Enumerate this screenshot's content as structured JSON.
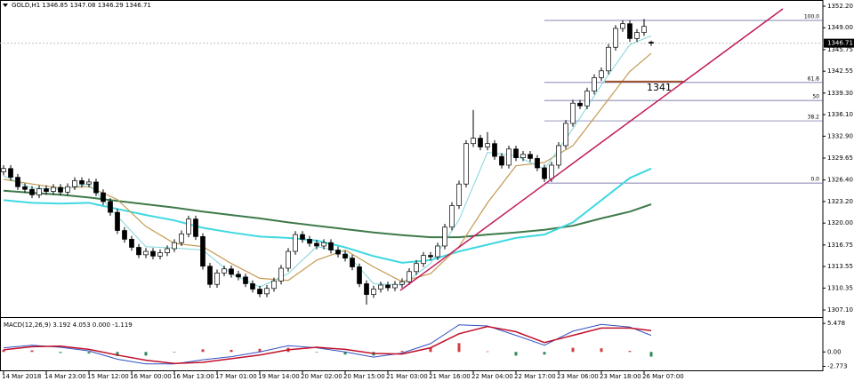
{
  "chart_data": {
    "type": "candlestick",
    "header": "GOLD,H1 1346.85 1347.08 1346.29 1346.71",
    "last_price": 1346.71,
    "categories": [
      "14 Mar 2018",
      null,
      null,
      null,
      null,
      null,
      "14 Mar 23:00",
      null,
      null,
      null,
      null,
      null,
      "15 Mar 12:00",
      null,
      null,
      null,
      null,
      null,
      "16 Mar 00:00",
      null,
      null,
      null,
      null,
      null,
      "16 Mar 13:00",
      null,
      null,
      null,
      null,
      null,
      "17 Mar 01:00",
      null,
      null,
      null,
      null,
      null,
      "19 Mar 14:00",
      null,
      null,
      null,
      null,
      null,
      "20 Mar 02:00",
      null,
      null,
      null,
      null,
      null,
      "20 Mar 15:00",
      null,
      null,
      null,
      null,
      null,
      "21 Mar 03:00",
      null,
      null,
      null,
      null,
      null,
      "21 Mar 16:00",
      null,
      null,
      null,
      null,
      null,
      "22 Mar 04:00",
      null,
      null,
      null,
      null,
      null,
      "22 Mar 17:00",
      null,
      null,
      null,
      null,
      null,
      "23 Mar 06:00",
      null,
      null,
      null,
      null,
      null,
      "23 Mar 18:00",
      null,
      null,
      null,
      null,
      null,
      "26 Mar 07:00",
      null
    ],
    "ohlc": [
      [
        1327.6,
        1328.6,
        1327.1,
        1328.1
      ],
      [
        1328.1,
        1328.6,
        1326.3,
        1326.8
      ],
      [
        1326.8,
        1327.3,
        1324.9,
        1325.4
      ],
      [
        1325.4,
        1325.9,
        1324.5,
        1325.0
      ],
      [
        1325.0,
        1325.5,
        1323.7,
        1324.2
      ],
      [
        1324.2,
        1325.6,
        1323.7,
        1325.1
      ],
      [
        1325.1,
        1325.6,
        1324.2,
        1324.7
      ],
      [
        1324.7,
        1325.8,
        1324.2,
        1325.3
      ],
      [
        1325.3,
        1325.8,
        1324.1,
        1324.6
      ],
      [
        1324.6,
        1325.9,
        1324.1,
        1325.4
      ],
      [
        1325.4,
        1326.8,
        1324.9,
        1326.3
      ],
      [
        1326.3,
        1326.8,
        1325.3,
        1325.8
      ],
      [
        1325.8,
        1326.6,
        1325.3,
        1326.1
      ],
      [
        1326.1,
        1326.6,
        1324.0,
        1324.5
      ],
      [
        1324.5,
        1325.0,
        1322.7,
        1323.2
      ],
      [
        1323.2,
        1323.7,
        1321.1,
        1321.6
      ],
      [
        1321.6,
        1322.1,
        1318.4,
        1318.9
      ],
      [
        1318.9,
        1319.4,
        1317.1,
        1317.6
      ],
      [
        1317.6,
        1318.1,
        1315.9,
        1316.4
      ],
      [
        1316.4,
        1316.9,
        1314.8,
        1315.3
      ],
      [
        1315.3,
        1316.3,
        1314.8,
        1315.8
      ],
      [
        1315.8,
        1316.3,
        1314.6,
        1315.1
      ],
      [
        1315.1,
        1316.1,
        1314.6,
        1315.6
      ],
      [
        1315.6,
        1316.7,
        1315.1,
        1316.2
      ],
      [
        1316.2,
        1317.6,
        1315.7,
        1317.1
      ],
      [
        1317.1,
        1318.9,
        1316.6,
        1318.4
      ],
      [
        1318.4,
        1321.1,
        1317.9,
        1320.6
      ],
      [
        1320.6,
        1321.1,
        1317.5,
        1318.0
      ],
      [
        1318.0,
        1318.5,
        1313.1,
        1313.6
      ],
      [
        1313.6,
        1314.1,
        1310.4,
        1310.9
      ],
      [
        1310.9,
        1313.1,
        1310.4,
        1312.6
      ],
      [
        1312.6,
        1313.7,
        1312.1,
        1313.2
      ],
      [
        1313.2,
        1313.7,
        1311.9,
        1312.4
      ],
      [
        1312.4,
        1312.9,
        1311.5,
        1312.0
      ],
      [
        1312.0,
        1312.5,
        1310.5,
        1311.0
      ],
      [
        1311.0,
        1311.5,
        1309.7,
        1310.2
      ],
      [
        1310.2,
        1310.7,
        1309.0,
        1309.5
      ],
      [
        1309.5,
        1310.8,
        1309.0,
        1310.3
      ],
      [
        1310.3,
        1311.9,
        1309.8,
        1311.4
      ],
      [
        1311.4,
        1313.8,
        1310.9,
        1313.3
      ],
      [
        1313.3,
        1316.3,
        1312.8,
        1315.8
      ],
      [
        1315.8,
        1318.8,
        1315.3,
        1318.3
      ],
      [
        1318.3,
        1318.8,
        1317.1,
        1317.6
      ],
      [
        1317.6,
        1318.1,
        1316.5,
        1317.0
      ],
      [
        1317.0,
        1317.5,
        1316.1,
        1316.6
      ],
      [
        1316.6,
        1317.6,
        1316.1,
        1317.1
      ],
      [
        1317.1,
        1317.6,
        1315.5,
        1316.0
      ],
      [
        1316.0,
        1316.5,
        1314.9,
        1315.4
      ],
      [
        1315.4,
        1315.9,
        1314.3,
        1314.8
      ],
      [
        1314.8,
        1315.3,
        1313.0,
        1313.5
      ],
      [
        1313.5,
        1314.0,
        1310.5,
        1311.0
      ],
      [
        1311.0,
        1311.5,
        1307.9,
        1309.4
      ],
      [
        1309.4,
        1310.7,
        1308.9,
        1310.2
      ],
      [
        1310.2,
        1311.3,
        1309.7,
        1310.8
      ],
      [
        1310.8,
        1311.3,
        1309.9,
        1310.4
      ],
      [
        1310.4,
        1311.4,
        1309.9,
        1310.9
      ],
      [
        1310.9,
        1311.8,
        1310.4,
        1311.3
      ],
      [
        1311.3,
        1313.3,
        1310.8,
        1312.8
      ],
      [
        1312.8,
        1314.5,
        1312.3,
        1314.0
      ],
      [
        1314.0,
        1315.7,
        1313.5,
        1315.2
      ],
      [
        1315.2,
        1315.7,
        1314.5,
        1315.0
      ],
      [
        1315.0,
        1317.1,
        1314.5,
        1316.6
      ],
      [
        1316.6,
        1319.9,
        1316.1,
        1319.4
      ],
      [
        1319.4,
        1323.1,
        1318.9,
        1322.6
      ],
      [
        1322.6,
        1326.3,
        1322.1,
        1325.8
      ],
      [
        1325.8,
        1332.3,
        1325.3,
        1331.8
      ],
      [
        1331.8,
        1336.8,
        1331.3,
        1332.6
      ],
      [
        1332.6,
        1333.1,
        1330.8,
        1331.3
      ],
      [
        1331.3,
        1333.5,
        1330.8,
        1331.8
      ],
      [
        1331.8,
        1332.3,
        1329.4,
        1329.9
      ],
      [
        1329.9,
        1330.4,
        1328.1,
        1328.6
      ],
      [
        1328.6,
        1331.5,
        1328.1,
        1331.0
      ],
      [
        1331.0,
        1331.5,
        1329.2,
        1329.7
      ],
      [
        1329.7,
        1330.7,
        1329.2,
        1330.2
      ],
      [
        1330.2,
        1330.7,
        1329.1,
        1329.6
      ],
      [
        1329.6,
        1330.1,
        1327.7,
        1328.2
      ],
      [
        1328.2,
        1328.7,
        1326.1,
        1326.6
      ],
      [
        1326.6,
        1329.1,
        1326.1,
        1328.6
      ],
      [
        1328.6,
        1332.0,
        1328.1,
        1331.5
      ],
      [
        1331.5,
        1335.3,
        1331.0,
        1334.8
      ],
      [
        1334.8,
        1338.3,
        1334.3,
        1337.8
      ],
      [
        1337.8,
        1338.3,
        1336.9,
        1337.4
      ],
      [
        1337.4,
        1340.1,
        1336.9,
        1339.6
      ],
      [
        1339.6,
        1342.1,
        1339.1,
        1341.6
      ],
      [
        1341.6,
        1343.1,
        1341.1,
        1342.6
      ],
      [
        1342.6,
        1346.6,
        1342.1,
        1346.1
      ],
      [
        1346.1,
        1349.4,
        1345.6,
        1348.9
      ],
      [
        1348.9,
        1350.1,
        1348.4,
        1349.6
      ],
      [
        1349.6,
        1350.1,
        1346.9,
        1347.4
      ],
      [
        1347.4,
        1348.8,
        1346.9,
        1348.3
      ],
      [
        1348.3,
        1350.3,
        1347.8,
        1349.2
      ],
      [
        1346.85,
        1347.08,
        1346.29,
        1346.71
      ]
    ],
    "up_color": "#ffffff",
    "down_color": "#000000",
    "wick_color": "#000000",
    "ylim": [
      1306.05,
      1353.12
    ],
    "yticks": [
      {
        "value": 1352.2,
        "label": "1352.20"
      },
      {
        "value": 1349,
        "label": "1349.00"
      },
      1345.75,
      1342.55,
      {
        "value": 1339.3,
        "label": "1339.30"
      },
      {
        "value": 1336.1,
        "label": "1336.10"
      },
      {
        "value": 1332.9,
        "label": "1332.90"
      },
      1329.65,
      {
        "value": 1326.4,
        "label": "1326.40"
      },
      {
        "value": 1323.2,
        "label": "1323.20"
      },
      {
        "value": 1320,
        "label": "1320.00"
      },
      1316.75,
      1313.55,
      1310.35,
      {
        "value": 1307.1,
        "label": "1307.10"
      }
    ],
    "overlays": [
      {
        "color": "#3d7a4a",
        "width": 2,
        "x": [
          0,
          4,
          8,
          12,
          16,
          20,
          24,
          28,
          32,
          36,
          40,
          44,
          48,
          52,
          56,
          60,
          64,
          68,
          72,
          76,
          80,
          84,
          88,
          91
        ],
        "values": [
          1324.8,
          1324.5,
          1324.2,
          1323.8,
          1323.3,
          1322.8,
          1322.3,
          1321.7,
          1321.2,
          1320.7,
          1320.1,
          1319.6,
          1319.1,
          1318.6,
          1318.2,
          1317.9,
          1317.9,
          1318.3,
          1318.6,
          1319.0,
          1319.6,
          1320.7,
          1321.7,
          1322.8
        ]
      },
      {
        "color": "#3fd8e0",
        "width": 2,
        "x": [
          0,
          4,
          8,
          12,
          16,
          20,
          24,
          28,
          32,
          36,
          40,
          44,
          48,
          52,
          56,
          60,
          64,
          68,
          72,
          76,
          80,
          84,
          88,
          91
        ],
        "values": [
          1323.4,
          1323.0,
          1322.9,
          1323.0,
          1322.1,
          1321.2,
          1320.4,
          1319.3,
          1318.6,
          1318.0,
          1317.8,
          1317.4,
          1316.4,
          1315.1,
          1314.1,
          1314.5,
          1315.8,
          1316.8,
          1317.8,
          1318.3,
          1320.1,
          1323.4,
          1326.7,
          1328.1
        ]
      },
      {
        "color": "#c49a52",
        "width": 1.2,
        "x": [
          0,
          4,
          8,
          12,
          16,
          20,
          24,
          28,
          32,
          36,
          40,
          44,
          48,
          52,
          56,
          60,
          64,
          68,
          72,
          76,
          80,
          84,
          88,
          91
        ],
        "values": [
          1326.5,
          1325.8,
          1325.2,
          1325.4,
          1323.5,
          1319.5,
          1317.0,
          1316.5,
          1314.0,
          1311.8,
          1311.5,
          1314.5,
          1316.0,
          1313.5,
          1311.3,
          1312.5,
          1316.5,
          1323.0,
          1328.5,
          1329.0,
          1331.5,
          1337.0,
          1342.5,
          1345.2
        ]
      },
      {
        "color": "#7fd6dc",
        "width": 1,
        "x": [
          0,
          4,
          8,
          12,
          16,
          20,
          24,
          28,
          32,
          36,
          40,
          44,
          48,
          52,
          56,
          60,
          64,
          68,
          72,
          76,
          80,
          84,
          88,
          91
        ],
        "values": [
          1327.0,
          1325.2,
          1325.0,
          1325.8,
          1321.0,
          1316.5,
          1316.3,
          1316.0,
          1312.5,
          1310.5,
          1312.5,
          1316.5,
          1315.7,
          1311.0,
          1310.8,
          1314.0,
          1320.5,
          1330.5,
          1330.0,
          1328.0,
          1334.0,
          1340.5,
          1346.5,
          1347.8
        ]
      }
    ],
    "fib": {
      "color": "#5a5a9a",
      "levels": [
        {
          "label": "100.0",
          "value": 1350.09
        },
        {
          "label": "61.8",
          "value": 1340.87
        },
        {
          "label": "50",
          "value": 1338.2
        },
        {
          "label": "38.2",
          "value": 1335.18
        },
        {
          "label": "0.0",
          "value": 1325.94
        }
      ]
    },
    "level_line": {
      "value": 1341,
      "color": "#a0522d",
      "text_color": "#d03030"
    },
    "trendline": {
      "color": "#c2185b",
      "x": [
        55.75,
        109.5
      ],
      "values": [
        1310.0,
        1351.8
      ]
    },
    "macd": {
      "label": "MACD(12,26,9) 3.192 4.053 0.000 -1.119",
      "ylim": [
        -3.71,
        6.54
      ],
      "yticks": [
        5.478,
        {
          "value": 0,
          "label": "0.00"
        },
        -2.773
      ],
      "x": [
        0,
        4,
        8,
        12,
        16,
        20,
        24,
        28,
        32,
        36,
        40,
        44,
        48,
        52,
        56,
        60,
        64,
        68,
        72,
        76,
        80,
        84,
        88,
        91
      ],
      "histogram": [
        0.4,
        0.3,
        -0.2,
        -0.3,
        -0.8,
        -0.7,
        -0.1,
        0.5,
        0.4,
        0.6,
        0.8,
        -0.1,
        -0.5,
        -0.7,
        0.2,
        0.8,
        1.7,
        0.1,
        -0.7,
        -0.5,
        0.8,
        0.7,
        0.2,
        -0.9
      ],
      "hist_up_color": "#d04040",
      "hist_down_color": "#2e8b57",
      "macd_line": {
        "color": "#3050c0",
        "values": [
          0.8,
          1.3,
          0.9,
          0.2,
          -1.4,
          -2.3,
          -2.3,
          -1.5,
          -0.9,
          0.0,
          1.2,
          0.8,
          0.0,
          -1.0,
          -0.2,
          1.6,
          5.2,
          5.0,
          3.2,
          1.3,
          4.0,
          5.3,
          4.8,
          3.2
        ]
      },
      "signal": {
        "color": "#c0102a",
        "values": [
          0.4,
          1.0,
          1.1,
          0.5,
          -0.6,
          -1.6,
          -2.2,
          -2.0,
          -1.3,
          -0.6,
          0.4,
          0.9,
          0.5,
          -0.3,
          -0.4,
          0.8,
          3.5,
          4.9,
          3.9,
          1.8,
          3.2,
          4.6,
          4.6,
          4.1
        ]
      }
    }
  }
}
